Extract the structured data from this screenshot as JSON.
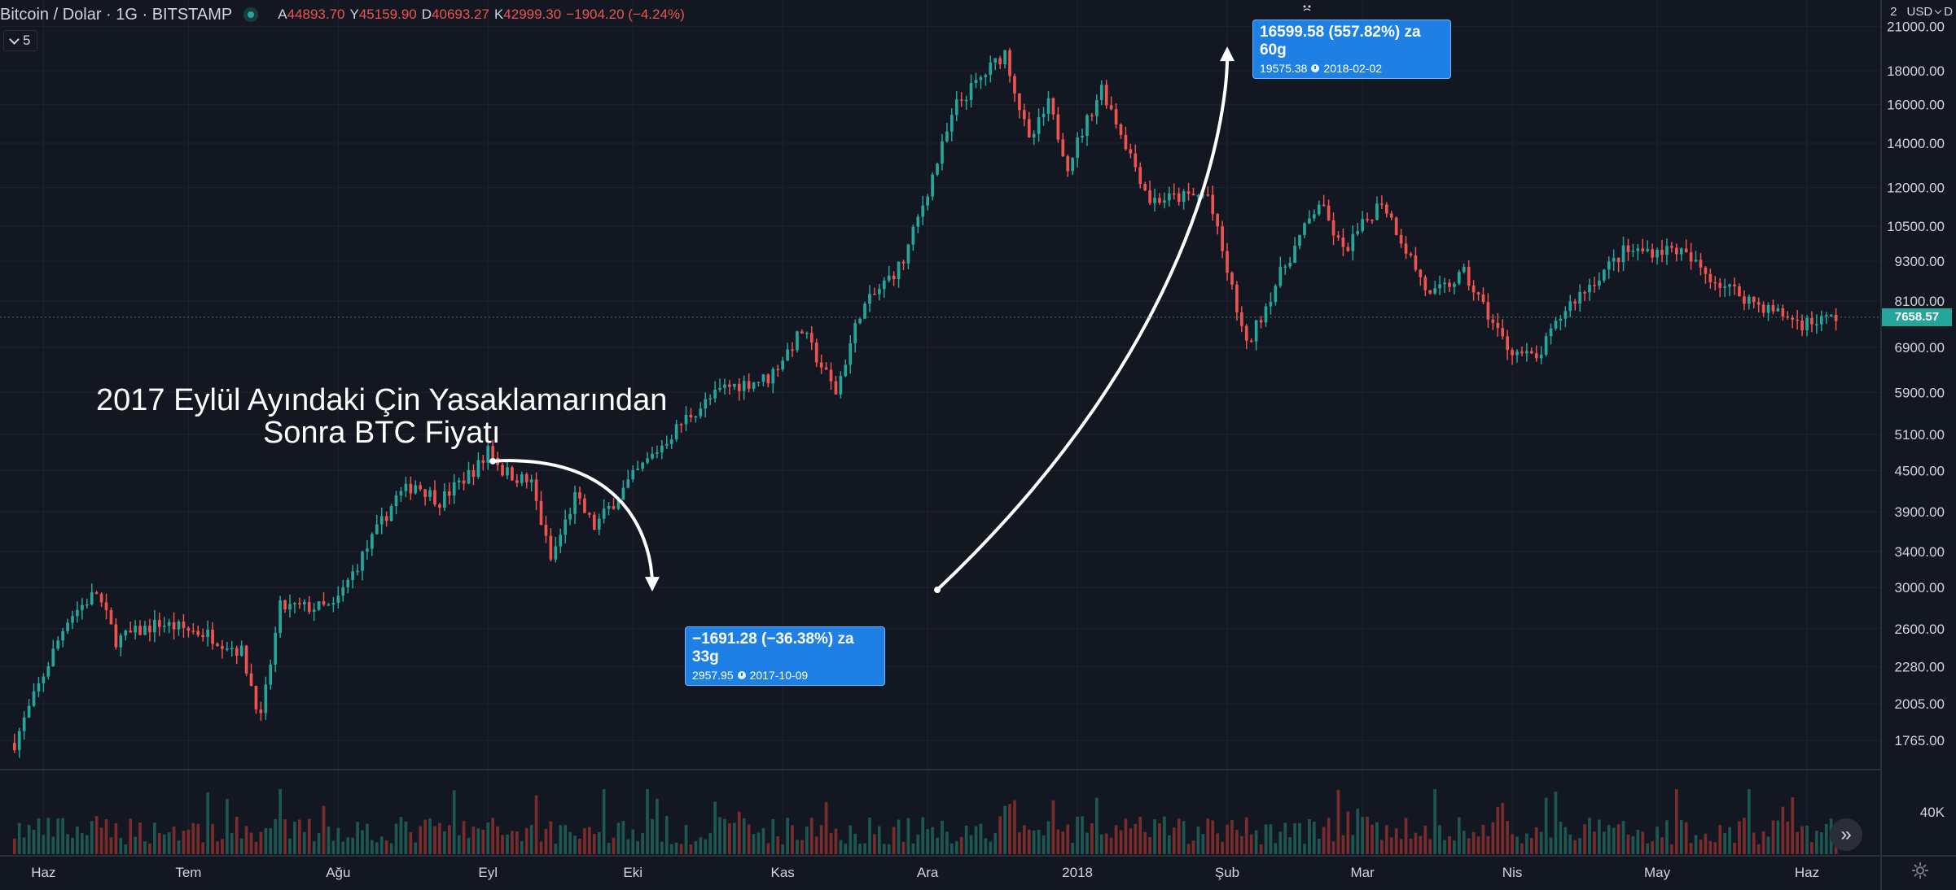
{
  "header": {
    "symbol_title": "Bitcoin / Dolar · 1G · BITSTAMP",
    "open_label": "A",
    "open_value": "44893.70",
    "high_label": "Y",
    "high_value": "45159.90",
    "low_label": "D",
    "low_value": "40693.27",
    "close_label": "K",
    "close_value": "42999.30",
    "change_value": "−1904.20 (−4.24%)",
    "status_dot_color": "#26a69a",
    "indicators_toggle_count": "5"
  },
  "currency_selector": "USD",
  "currency_suffix": "D",
  "axis_top_fragment": "2",
  "current_price_label": "7658.57",
  "chart_data": {
    "type": "candlestick",
    "title": "",
    "yscale": "log",
    "ylim": [
      1600,
      23000
    ],
    "y_ticks": [
      "1765.00",
      "2005.00",
      "2280.00",
      "2600.00",
      "3000.00",
      "3400.00",
      "3900.00",
      "4500.00",
      "5100.00",
      "5900.00",
      "6900.00",
      "8100.00",
      "9300.00",
      "10500.00",
      "12000.00",
      "14000.00",
      "16000.00",
      "18000.00",
      "21000.00"
    ],
    "x_ticks": [
      "Haz",
      "Tem",
      "Ağu",
      "Eyl",
      "Eki",
      "Kas",
      "Ara",
      "2018",
      "Şub",
      "Mar",
      "Nis",
      "May",
      "Haz"
    ],
    "volume_axis_label": "40K",
    "up_color": "#26a69a",
    "down_color": "#ef5350",
    "price_path": [
      {
        "date": "2017-05-26",
        "close": 1750
      },
      {
        "date": "2017-06-06",
        "close": 2700
      },
      {
        "date": "2017-06-12",
        "close": 2950
      },
      {
        "date": "2017-06-16",
        "close": 2500
      },
      {
        "date": "2017-06-25",
        "close": 2650
      },
      {
        "date": "2017-07-05",
        "close": 2550
      },
      {
        "date": "2017-07-12",
        "close": 2400
      },
      {
        "date": "2017-07-16",
        "close": 1900
      },
      {
        "date": "2017-07-20",
        "close": 2800
      },
      {
        "date": "2017-07-31",
        "close": 2800
      },
      {
        "date": "2017-08-05",
        "close": 3250
      },
      {
        "date": "2017-08-13",
        "close": 4100
      },
      {
        "date": "2017-08-17",
        "close": 4300
      },
      {
        "date": "2017-08-22",
        "close": 4050
      },
      {
        "date": "2017-08-31",
        "close": 4650
      },
      {
        "date": "2017-09-01",
        "close": 4900
      },
      {
        "date": "2017-09-04",
        "close": 4500
      },
      {
        "date": "2017-09-10",
        "close": 4300
      },
      {
        "date": "2017-09-14",
        "close": 3300
      },
      {
        "date": "2017-09-19",
        "close": 4100
      },
      {
        "date": "2017-09-23",
        "close": 3700
      },
      {
        "date": "2017-10-01",
        "close": 4400
      },
      {
        "date": "2017-10-12",
        "close": 5400
      },
      {
        "date": "2017-10-20",
        "close": 6000
      },
      {
        "date": "2017-10-29",
        "close": 6200
      },
      {
        "date": "2017-11-05",
        "close": 7300
      },
      {
        "date": "2017-11-12",
        "close": 5900
      },
      {
        "date": "2017-11-17",
        "close": 7800
      },
      {
        "date": "2017-11-26",
        "close": 9300
      },
      {
        "date": "2017-12-07",
        "close": 16000
      },
      {
        "date": "2017-12-17",
        "close": 19200
      },
      {
        "date": "2017-12-22",
        "close": 14000
      },
      {
        "date": "2017-12-26",
        "close": 16000
      },
      {
        "date": "2017-12-30",
        "close": 13000
      },
      {
        "date": "2018-01-06",
        "close": 17000
      },
      {
        "date": "2018-01-16",
        "close": 11500
      },
      {
        "date": "2018-01-28",
        "close": 11700
      },
      {
        "date": "2018-02-05",
        "close": 6900
      },
      {
        "date": "2018-02-12",
        "close": 8900
      },
      {
        "date": "2018-02-20",
        "close": 11400
      },
      {
        "date": "2018-02-25",
        "close": 9600
      },
      {
        "date": "2018-03-05",
        "close": 11500
      },
      {
        "date": "2018-03-15",
        "close": 8200
      },
      {
        "date": "2018-03-22",
        "close": 8900
      },
      {
        "date": "2018-03-31",
        "close": 6900
      },
      {
        "date": "2018-04-06",
        "close": 6600
      },
      {
        "date": "2018-04-12",
        "close": 7900
      },
      {
        "date": "2018-04-24",
        "close": 9600
      },
      {
        "date": "2018-05-05",
        "close": 9700
      },
      {
        "date": "2018-05-13",
        "close": 8700
      },
      {
        "date": "2018-05-22",
        "close": 8000
      },
      {
        "date": "2018-05-31",
        "close": 7500
      },
      {
        "date": "2018-06-07",
        "close": 7658.57
      }
    ],
    "annotations": [
      {
        "lines": [
          "2017 Eylül Ayındaki Çin Yasaklamarından",
          "Sonra BTC Fiyatı"
        ]
      }
    ],
    "measurements": [
      {
        "from_date": "2017-09-02",
        "from_price": 4649.23,
        "to_date": "2017-10-05",
        "to_price": 2957.95,
        "line1": "−1691.28 (−36.38%) za 33g",
        "line2_price": "2957.95",
        "line2_date": "2017-10-09"
      },
      {
        "from_date": "2017-12-03",
        "from_price": 2975.8,
        "to_date": "2018-02-01",
        "to_price": 19575.38,
        "line1": "16599.58 (557.82%) za 60g",
        "line2_price": "19575.38",
        "line2_date": "2018-02-02"
      }
    ]
  }
}
